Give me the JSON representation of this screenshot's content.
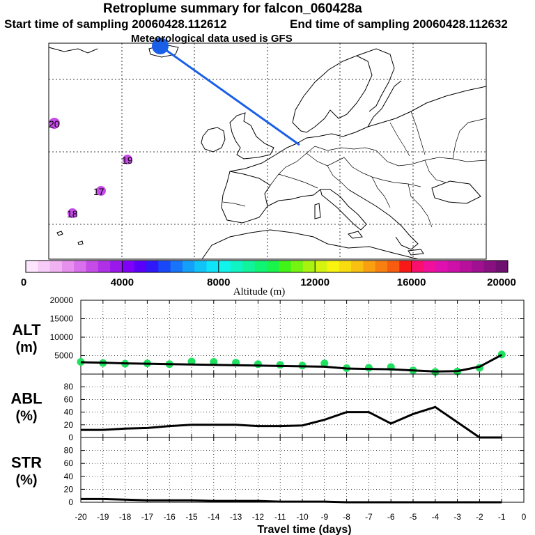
{
  "header": {
    "title": "Retroplume summary for falcon_060428a",
    "start_label": "Start time of sampling 20060428.112612",
    "end_label": "End time of sampling 20060428.112632",
    "met_label": "Meteorological data used is GFS"
  },
  "map": {
    "point_labels": [
      "20",
      "19",
      "17",
      "18"
    ],
    "plume_color": "#1a5fe8"
  },
  "colorbar": {
    "title": "Altitude (m)",
    "tick_labels": [
      "0",
      "4000",
      "8000",
      "12000",
      "16000",
      "20000"
    ],
    "colors": [
      "#fde6fd",
      "#f8ccf8",
      "#f0b2f0",
      "#e890ee",
      "#d970ee",
      "#c64ce8",
      "#b030e8",
      "#9a18ec",
      "#8000f8",
      "#5a00f8",
      "#3018f8",
      "#1848f8",
      "#1874f8",
      "#14a0f8",
      "#10c4f8",
      "#10e4f8",
      "#10f4ec",
      "#10f4c4",
      "#10f49c",
      "#10f474",
      "#18f44c",
      "#40f418",
      "#74f410",
      "#a8f410",
      "#d4f410",
      "#f8f410",
      "#f8dc10",
      "#f8c010",
      "#f8a010",
      "#f88010",
      "#f85c10",
      "#f81818",
      "#f8106c",
      "#f0109c",
      "#e010b0",
      "#cc10a8",
      "#b8109c",
      "#a01090",
      "#881080",
      "#701070"
    ]
  },
  "xaxis": {
    "title": "Travel time (days)",
    "tick_labels": [
      "-20",
      "-19",
      "-18",
      "-17",
      "-16",
      "-15",
      "-14",
      "-13",
      "-12",
      "-11",
      "-10",
      "-9",
      "-8",
      "-7",
      "-6",
      "-5",
      "-4",
      "-3",
      "-2",
      "-1",
      "0"
    ]
  },
  "chart_data": [
    {
      "type": "line",
      "id": "alt",
      "ylabel_line1": "ALT",
      "ylabel_line2": "(m)",
      "ylim": [
        0,
        20000
      ],
      "yticks": [
        5000,
        10000,
        15000,
        20000
      ],
      "tick_labels": [
        "5000",
        "10000",
        "15000",
        "20000"
      ],
      "x": [
        -20,
        -19,
        -18,
        -17,
        -16,
        -15,
        -14,
        -13,
        -12,
        -11,
        -10,
        -9,
        -8,
        -7,
        -6,
        -5,
        -4,
        -3,
        -2,
        -1
      ],
      "values": [
        3200,
        3100,
        2900,
        2800,
        2700,
        2600,
        2500,
        2400,
        2300,
        2200,
        2100,
        2000,
        1500,
        1400,
        1300,
        1000,
        700,
        800,
        2000,
        5200
      ],
      "scatter": [
        {
          "x": -20,
          "y": 3300
        },
        {
          "x": -19,
          "y": 3000
        },
        {
          "x": -18,
          "y": 2800
        },
        {
          "x": -17,
          "y": 2900
        },
        {
          "x": -16,
          "y": 2700
        },
        {
          "x": -15,
          "y": 3400
        },
        {
          "x": -14,
          "y": 3300
        },
        {
          "x": -13,
          "y": 3100
        },
        {
          "x": -12,
          "y": 2700
        },
        {
          "x": -11,
          "y": 2500
        },
        {
          "x": -10,
          "y": 2300
        },
        {
          "x": -9,
          "y": 2900
        },
        {
          "x": -8,
          "y": 1600
        },
        {
          "x": -7,
          "y": 1700
        },
        {
          "x": -6,
          "y": 1900
        },
        {
          "x": -5,
          "y": 1000
        },
        {
          "x": -4,
          "y": 600
        },
        {
          "x": -3,
          "y": 700
        },
        {
          "x": -2,
          "y": 1700
        },
        {
          "x": -1,
          "y": 5300
        }
      ],
      "scatter_color": "#20e060"
    },
    {
      "type": "line",
      "id": "abl",
      "ylabel_line1": "ABL",
      "ylabel_line2": "(%)",
      "ylim": [
        0,
        100
      ],
      "yticks": [
        0,
        20,
        40,
        60,
        80
      ],
      "tick_labels": [
        "0",
        "20",
        "40",
        "60",
        "80"
      ],
      "x": [
        -20,
        -19,
        -18,
        -17,
        -16,
        -15,
        -14,
        -13,
        -12,
        -11,
        -10,
        -9,
        -8,
        -7,
        -6,
        -5,
        -4,
        -3,
        -2,
        -1
      ],
      "values": [
        12,
        12,
        14,
        15,
        18,
        20,
        20,
        20,
        18,
        18,
        19,
        28,
        40,
        40,
        22,
        37,
        48,
        24,
        0,
        0
      ]
    },
    {
      "type": "line",
      "id": "str",
      "ylabel_line1": "STR",
      "ylabel_line2": "(%)",
      "ylim": [
        0,
        100
      ],
      "yticks": [
        0,
        20,
        40,
        60,
        80
      ],
      "tick_labels": [
        "0",
        "20",
        "40",
        "60",
        "80"
      ],
      "x": [
        -20,
        -19,
        -18,
        -17,
        -16,
        -15,
        -14,
        -13,
        -12,
        -11,
        -10,
        -9,
        -8,
        -7,
        -6,
        -5,
        -4,
        -3,
        -2,
        -1
      ],
      "values": [
        5,
        5,
        4,
        3,
        3,
        3,
        2,
        2,
        2,
        1,
        1,
        1,
        0,
        0,
        0,
        0,
        0,
        0,
        0,
        0
      ]
    }
  ]
}
